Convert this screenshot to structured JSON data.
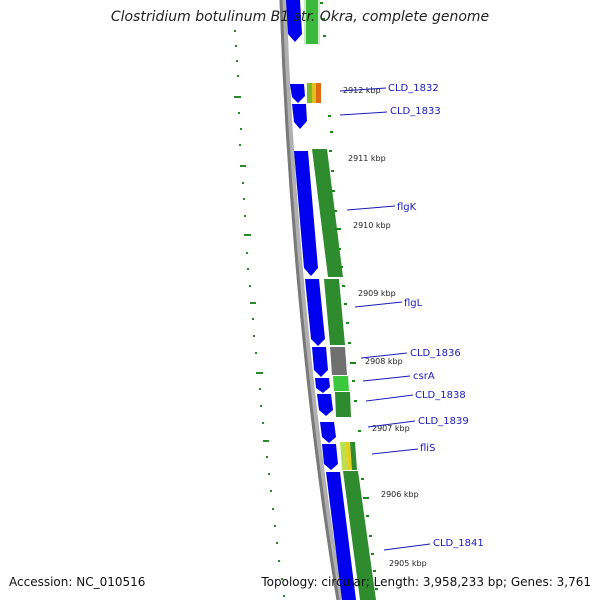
{
  "title": "Clostridium botulinum B1 str. Okra, complete genome",
  "accession": "Accession: NC_010516",
  "summary": "Topology: circular; Length: 3,958,233 bp; Genes: 3,761",
  "kbp_ticks": [
    {
      "label": "2912 kbp"
    },
    {
      "label": "2911 kbp"
    },
    {
      "label": "2910 kbp"
    },
    {
      "label": "2909 kbp"
    },
    {
      "label": "2908 kbp"
    },
    {
      "label": "2907 kbp"
    },
    {
      "label": "2906 kbp"
    },
    {
      "label": "2905 kbp"
    }
  ],
  "genes": [
    {
      "label": "CLD_1832"
    },
    {
      "label": "CLD_1833"
    },
    {
      "label": "flgK"
    },
    {
      "label": "flgL"
    },
    {
      "label": "CLD_1836"
    },
    {
      "label": "csrA"
    },
    {
      "label": "CLD_1838"
    },
    {
      "label": "CLD_1839"
    },
    {
      "label": "fliS"
    },
    {
      "label": "CLD_1841"
    }
  ],
  "colors": {
    "cds": "#0000ee",
    "cog_green": "#2e8b2e",
    "backbone": "#8a8a8a",
    "label": "#1a1ab8"
  }
}
